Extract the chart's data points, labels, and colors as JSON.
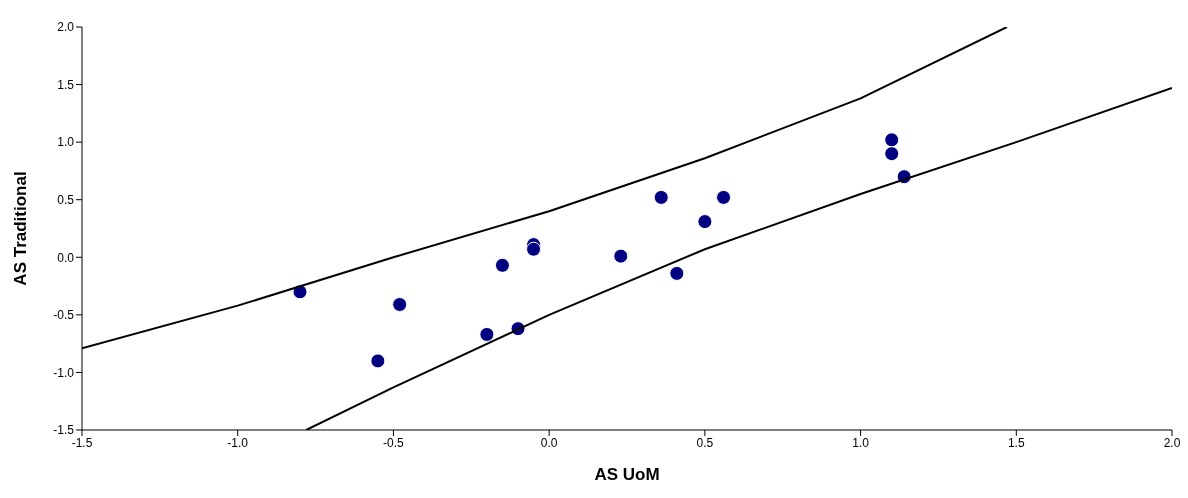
{
  "chart_data": {
    "type": "scatter",
    "xlabel": "AS UoM",
    "ylabel": "AS Traditional",
    "xlim": [
      -1.5,
      2.0
    ],
    "xticks": [
      -1.5,
      {
        "value": -1,
        "label": "-1.0"
      },
      -0.5,
      {
        "value": 0,
        "label": "0.0"
      },
      0.5,
      {
        "value": 1,
        "label": "1.0"
      },
      1.5,
      {
        "value": 2,
        "label": "2.0"
      }
    ],
    "ylim": [
      -1.5,
      2.0
    ],
    "yticks": [
      -1.5,
      {
        "value": -1,
        "label": "-1.0"
      },
      -0.5,
      {
        "value": 0,
        "label": "0.0"
      },
      0.5,
      {
        "value": 1,
        "label": "1.0"
      },
      1.5,
      {
        "value": 2,
        "label": "2.0"
      }
    ],
    "series": [
      {
        "color": "#000080",
        "marker": "circle",
        "x": [
          -0.8,
          -0.55,
          -0.48,
          -0.2,
          -0.1,
          -0.15,
          -0.05,
          -0.05,
          0.23,
          0.36,
          0.41,
          0.5,
          0.56,
          1.1,
          1.1,
          1.14
        ],
        "values": [
          -0.3,
          -0.9,
          -0.41,
          -0.67,
          -0.62,
          -0.07,
          0.11,
          0.07,
          0.01,
          0.52,
          -0.14,
          0.31,
          0.52,
          1.02,
          0.9,
          0.7
        ]
      },
      {
        "type": "line",
        "color": "#000000",
        "marker": "none",
        "line_style": "solid",
        "x": [
          -1.5,
          -1.0,
          -0.5,
          0,
          0.5,
          1.0,
          1.47
        ],
        "values": [
          -0.79,
          -0.42,
          0.0,
          0.4,
          0.86,
          1.38,
          2.0
        ]
      },
      {
        "type": "line",
        "color": "#000000",
        "marker": "none",
        "line_style": "solid",
        "x": [
          -0.78,
          -0.5,
          0,
          0.5,
          1.0,
          1.5,
          2.0
        ],
        "values": [
          -1.5,
          -1.13,
          -0.5,
          0.07,
          0.55,
          1.0,
          1.47
        ]
      }
    ]
  }
}
